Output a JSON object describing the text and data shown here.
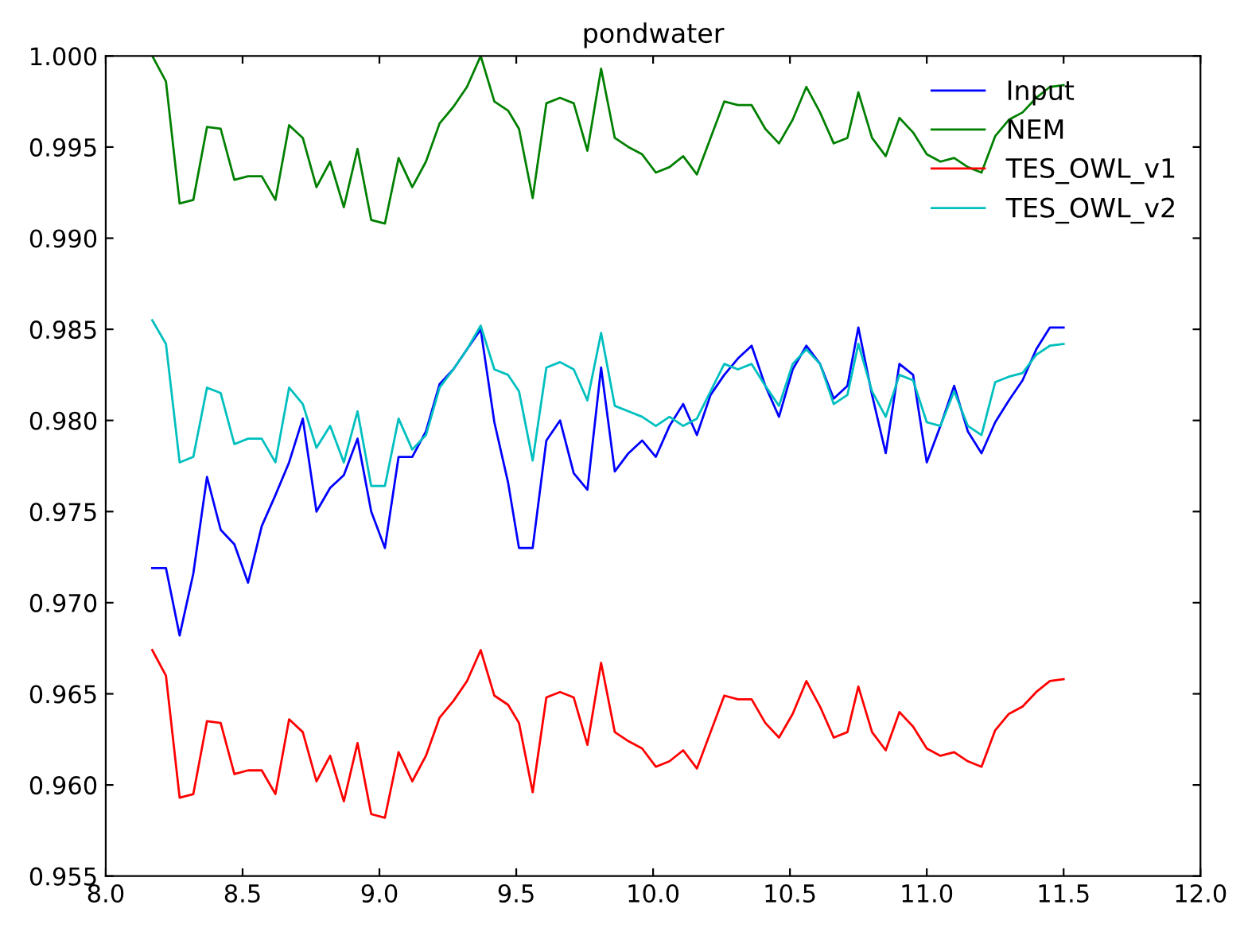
{
  "chart_data": {
    "type": "line",
    "title": "pondwater",
    "x": [
      8.17,
      8.22,
      8.27,
      8.32,
      8.37,
      8.42,
      8.47,
      8.52,
      8.57,
      8.62,
      8.67,
      8.72,
      8.77,
      8.82,
      8.87,
      8.92,
      8.97,
      9.02,
      9.07,
      9.12,
      9.17,
      9.22,
      9.27,
      9.32,
      9.37,
      9.42,
      9.47,
      9.51,
      9.56,
      9.61,
      9.66,
      9.71,
      9.76,
      9.81,
      9.86,
      9.91,
      9.96,
      10.01,
      10.06,
      10.11,
      10.16,
      10.21,
      10.26,
      10.31,
      10.36,
      10.41,
      10.46,
      10.51,
      10.56,
      10.61,
      10.66,
      10.71,
      10.75,
      10.8,
      10.85,
      10.9,
      10.95,
      11.0,
      11.05,
      11.1,
      11.15,
      11.2,
      11.25,
      11.3,
      11.35,
      11.4,
      11.45,
      11.5
    ],
    "series": [
      {
        "name": "Input",
        "color": "#0000ff",
        "values": [
          0.9719,
          0.9719,
          0.9682,
          0.9716,
          0.9769,
          0.974,
          0.9732,
          0.9711,
          0.9742,
          0.9759,
          0.9777,
          0.9801,
          0.975,
          0.9763,
          0.977,
          0.979,
          0.975,
          0.973,
          0.978,
          0.978,
          0.9794,
          0.982,
          0.9828,
          0.9839,
          0.985,
          0.9799,
          0.9766,
          0.973,
          0.973,
          0.9789,
          0.98,
          0.9771,
          0.9762,
          0.9829,
          0.9772,
          0.9782,
          0.9789,
          0.978,
          0.9797,
          0.9809,
          0.9792,
          0.9814,
          0.9825,
          0.9834,
          0.9841,
          0.9819,
          0.9802,
          0.9828,
          0.9841,
          0.9831,
          0.9812,
          0.9819,
          0.9851,
          0.9814,
          0.9782,
          0.9831,
          0.9825,
          0.9777,
          0.9797,
          0.9819,
          0.9794,
          0.9782,
          0.9799,
          0.9811,
          0.9822,
          0.9839,
          0.9851,
          0.9851
        ]
      },
      {
        "name": "NEM",
        "color": "#008000",
        "values": [
          1.0,
          0.9986,
          0.9919,
          0.9921,
          0.9961,
          0.996,
          0.9932,
          0.9934,
          0.9934,
          0.9921,
          0.9962,
          0.9955,
          0.9928,
          0.9942,
          0.9917,
          0.9949,
          0.991,
          0.9908,
          0.9944,
          0.9928,
          0.9942,
          0.9963,
          0.9972,
          0.9983,
          1.0,
          0.9975,
          0.997,
          0.996,
          0.9922,
          0.9974,
          0.9977,
          0.9974,
          0.9948,
          0.9993,
          0.9955,
          0.995,
          0.9946,
          0.9936,
          0.9939,
          0.9945,
          0.9935,
          0.9955,
          0.9975,
          0.9973,
          0.9973,
          0.996,
          0.9952,
          0.9965,
          0.9983,
          0.9969,
          0.9952,
          0.9955,
          0.998,
          0.9955,
          0.9945,
          0.9966,
          0.9958,
          0.9946,
          0.9942,
          0.9944,
          0.9939,
          0.9936,
          0.9956,
          0.9965,
          0.9969,
          0.9977,
          0.9983,
          0.9984
        ]
      },
      {
        "name": "TES_OWL_v1",
        "color": "#ff0000",
        "values": [
          0.9674,
          0.966,
          0.9593,
          0.9595,
          0.9635,
          0.9634,
          0.9606,
          0.9608,
          0.9608,
          0.9595,
          0.9636,
          0.9629,
          0.9602,
          0.9616,
          0.9591,
          0.9623,
          0.9584,
          0.9582,
          0.9618,
          0.9602,
          0.9616,
          0.9637,
          0.9646,
          0.9657,
          0.9674,
          0.9649,
          0.9644,
          0.9634,
          0.9596,
          0.9648,
          0.9651,
          0.9648,
          0.9622,
          0.9667,
          0.9629,
          0.9624,
          0.962,
          0.961,
          0.9613,
          0.9619,
          0.9609,
          0.9629,
          0.9649,
          0.9647,
          0.9647,
          0.9634,
          0.9626,
          0.9639,
          0.9657,
          0.9643,
          0.9626,
          0.9629,
          0.9654,
          0.9629,
          0.9619,
          0.964,
          0.9632,
          0.962,
          0.9616,
          0.9618,
          0.9613,
          0.961,
          0.963,
          0.9639,
          0.9643,
          0.9651,
          0.9657,
          0.9658
        ]
      },
      {
        "name": "TES_OWL_v2",
        "color": "#00bfbf",
        "values": [
          0.9855,
          0.9842,
          0.9777,
          0.978,
          0.9818,
          0.9815,
          0.9787,
          0.979,
          0.979,
          0.9777,
          0.9818,
          0.9809,
          0.9785,
          0.9797,
          0.9777,
          0.9805,
          0.9764,
          0.9764,
          0.9801,
          0.9784,
          0.9792,
          0.9818,
          0.9828,
          0.9839,
          0.9852,
          0.9828,
          0.9825,
          0.9816,
          0.9778,
          0.9829,
          0.9832,
          0.9828,
          0.9811,
          0.9848,
          0.9808,
          0.9805,
          0.9802,
          0.9797,
          0.9802,
          0.9797,
          0.9801,
          0.9816,
          0.9831,
          0.9828,
          0.9831,
          0.9819,
          0.9808,
          0.9831,
          0.9839,
          0.9831,
          0.9809,
          0.9814,
          0.9842,
          0.9816,
          0.9802,
          0.9825,
          0.9822,
          0.9799,
          0.9797,
          0.9816,
          0.9797,
          0.9792,
          0.9821,
          0.9824,
          0.9826,
          0.9836,
          0.9841,
          0.9842
        ]
      }
    ],
    "xlim": [
      8.0,
      12.0
    ],
    "xticks": [
      {
        "value": 8.0,
        "label": "8.0"
      },
      {
        "value": 8.5,
        "label": "8.5"
      },
      {
        "value": 9.0,
        "label": "9.0"
      },
      {
        "value": 9.5,
        "label": "9.5"
      },
      {
        "value": 10.0,
        "label": "10.0"
      },
      {
        "value": 10.5,
        "label": "10.5"
      },
      {
        "value": 11.0,
        "label": "11.0"
      },
      {
        "value": 11.5,
        "label": "11.5"
      },
      {
        "value": 12.0,
        "label": "12.0"
      }
    ],
    "ylim": [
      0.955,
      1.0
    ],
    "yticks": [
      {
        "value": 0.955,
        "label": "0.955"
      },
      {
        "value": 0.96,
        "label": "0.960"
      },
      {
        "value": 0.965,
        "label": "0.965"
      },
      {
        "value": 0.97,
        "label": "0.970"
      },
      {
        "value": 0.975,
        "label": "0.975"
      },
      {
        "value": 0.98,
        "label": "0.980"
      },
      {
        "value": 0.985,
        "label": "0.985"
      },
      {
        "value": 0.99,
        "label": "0.990"
      },
      {
        "value": 0.995,
        "label": "0.995"
      },
      {
        "value": 1.0,
        "label": "1.000"
      }
    ],
    "grid": false,
    "legend": "top right",
    "marker": "none",
    "line_style": "solid"
  }
}
